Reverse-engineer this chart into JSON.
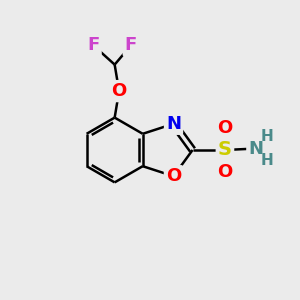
{
  "bg_color": "#ebebeb",
  "bond_color": "#000000",
  "bond_width": 1.8,
  "atom_colors": {
    "F": "#cc44cc",
    "O": "#ff0000",
    "N": "#0000ee",
    "S": "#cccc00",
    "NH2_N": "#4a8a8a",
    "C": "#000000"
  },
  "font_size_atoms": 13
}
